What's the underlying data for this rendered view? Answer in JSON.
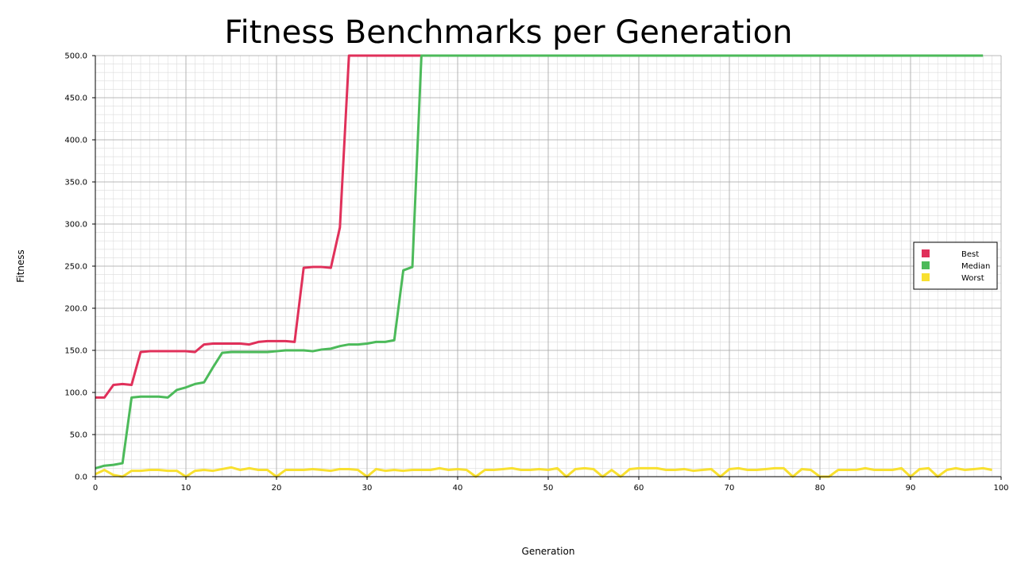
{
  "chart_data": {
    "type": "line",
    "title": "Fitness Benchmarks per Generation",
    "xlabel": "Generation",
    "ylabel": "Fitness",
    "xlim": [
      0,
      100
    ],
    "ylim": [
      0,
      500
    ],
    "x_ticks": [
      "0",
      "10",
      "20",
      "30",
      "40",
      "50",
      "60",
      "70",
      "80",
      "90",
      "100"
    ],
    "y_ticks": [
      "0.0",
      "50.0",
      "100.0",
      "150.0",
      "200.0",
      "250.0",
      "300.0",
      "350.0",
      "400.0",
      "450.0",
      "500.0"
    ],
    "grid": true,
    "legend_position": "center-right",
    "series": [
      {
        "name": "Best",
        "color": "#e0305a",
        "values": [
          94,
          94,
          109,
          110,
          109,
          148,
          149,
          149,
          149,
          149,
          149,
          148,
          157,
          158,
          158,
          158,
          158,
          157,
          160,
          161,
          161,
          161,
          160,
          248,
          249,
          249,
          248,
          296,
          500,
          500,
          500,
          500,
          500,
          500,
          500,
          500,
          500,
          500
        ]
      },
      {
        "name": "Median",
        "color": "#4cba5a",
        "values": [
          10,
          13,
          14,
          16,
          94,
          95,
          95,
          95,
          94,
          103,
          106,
          110,
          112,
          130,
          147,
          148,
          148,
          148,
          148,
          148,
          149,
          150,
          150,
          150,
          149,
          151,
          152,
          155,
          157,
          157,
          158,
          160,
          160,
          162,
          245,
          249,
          500,
          500,
          500,
          500,
          500,
          500,
          500,
          500,
          500,
          500,
          500,
          500,
          500,
          500,
          500,
          500,
          500,
          500,
          500,
          500,
          500,
          500,
          500,
          500,
          500,
          500,
          500,
          500,
          500,
          500,
          500,
          500,
          500,
          500,
          500,
          500,
          500,
          500,
          500,
          500,
          500,
          500,
          500,
          500,
          500,
          500,
          500,
          500,
          500,
          500,
          500,
          500,
          500,
          500,
          500,
          500,
          500,
          500,
          500,
          500,
          500,
          500,
          500
        ]
      },
      {
        "name": "Worst",
        "color": "#f8e030",
        "values": [
          3,
          8,
          2,
          0,
          7,
          7,
          8,
          8,
          7,
          7,
          0,
          7,
          8,
          7,
          9,
          11,
          8,
          10,
          8,
          8,
          0,
          8,
          8,
          8,
          9,
          8,
          7,
          9,
          9,
          8,
          0,
          9,
          7,
          8,
          7,
          8,
          8,
          8,
          10,
          8,
          9,
          8,
          0,
          8,
          8,
          9,
          10,
          8,
          8,
          9,
          8,
          10,
          0,
          9,
          10,
          9,
          0,
          8,
          0,
          9,
          10,
          10,
          10,
          8,
          8,
          9,
          7,
          8,
          9,
          0,
          9,
          10,
          8,
          8,
          9,
          10,
          10,
          0,
          9,
          8,
          0,
          0,
          8,
          8,
          8,
          10,
          8,
          8,
          8,
          10,
          0,
          9,
          10,
          0,
          8,
          10,
          8,
          9,
          10,
          8
        ]
      }
    ]
  }
}
